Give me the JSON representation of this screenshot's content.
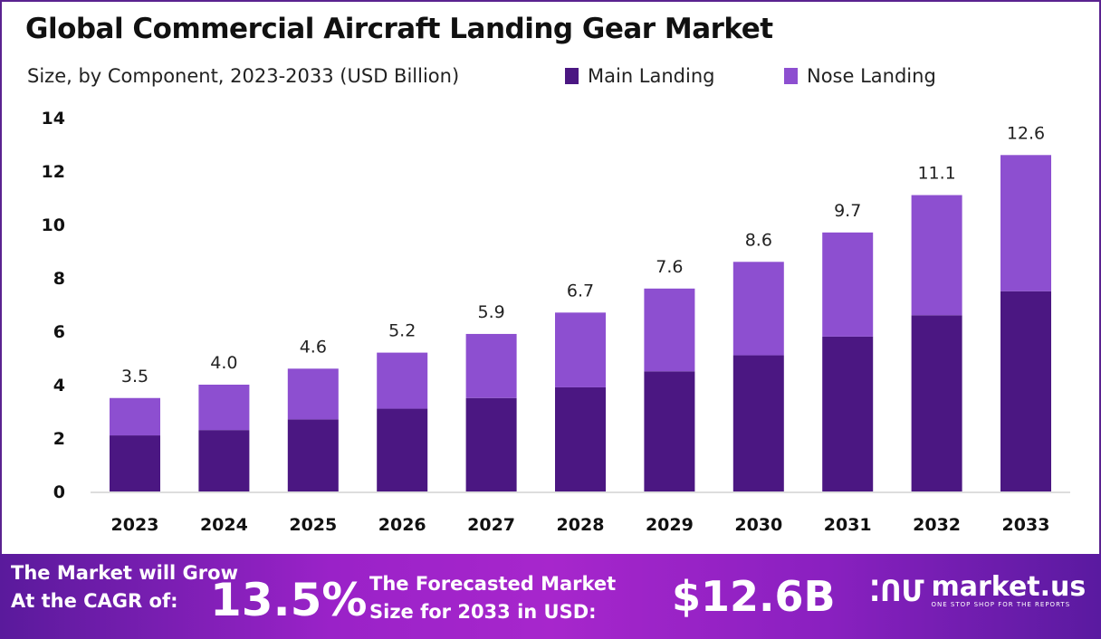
{
  "chart_data": {
    "type": "bar",
    "stacked": true,
    "title": "Global Commercial Aircraft Landing Gear Market",
    "subtitle": "Size, by Component, 2023-2033 (USD Billion)",
    "categories": [
      "2023",
      "2024",
      "2025",
      "2026",
      "2027",
      "2028",
      "2029",
      "2030",
      "2031",
      "2032",
      "2033"
    ],
    "series": [
      {
        "name": "Main Landing",
        "color": "#4b1782",
        "values": [
          2.1,
          2.3,
          2.7,
          3.1,
          3.5,
          3.9,
          4.5,
          5.1,
          5.8,
          6.6,
          7.5
        ]
      },
      {
        "name": "Nose Landing",
        "color": "#8d4fd0",
        "values": [
          1.4,
          1.7,
          1.9,
          2.1,
          2.4,
          2.8,
          3.1,
          3.5,
          3.9,
          4.5,
          5.1
        ]
      }
    ],
    "totals": [
      "3.5",
      "4.0",
      "4.6",
      "5.2",
      "5.9",
      "6.7",
      "7.6",
      "8.6",
      "9.7",
      "11.1",
      "12.6"
    ],
    "yticks": [
      "0",
      "2",
      "4",
      "6",
      "8",
      "10",
      "12",
      "14"
    ],
    "ylim": [
      0,
      14
    ],
    "legend_position": "top",
    "xlabel": "",
    "ylabel": ""
  },
  "footer": {
    "cagr_label_1": "The Market will Grow",
    "cagr_label_2": "At the CAGR of:",
    "cagr_value": "13.5%",
    "forecast_label_1": "The Forecasted Market",
    "forecast_label_2": "Size for 2033 in USD:",
    "forecast_value": "$12.6B",
    "brand": "market.us",
    "brand_tagline": "ONE STOP SHOP FOR THE REPORTS"
  }
}
